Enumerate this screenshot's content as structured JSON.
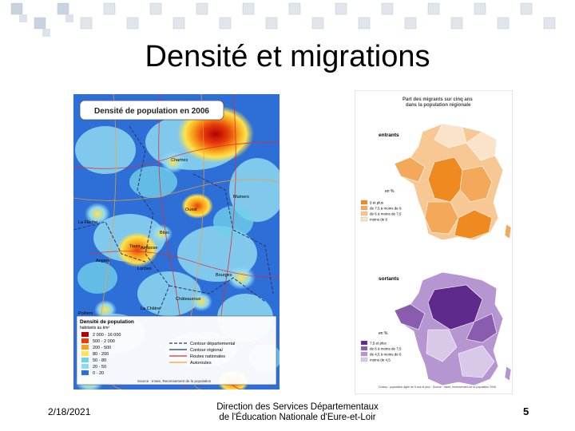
{
  "slide": {
    "title": "Densité et migrations",
    "date": "2/18/2021",
    "footer_line1": "Direction des Services Départementaux",
    "footer_line2": "de l'Éducation Nationale d'Eure-et-Loir",
    "page_number": "5"
  },
  "left_map": {
    "title": "Densité de population en 2006",
    "places": [
      "Chartres",
      "Mamers",
      "Ouest",
      "La Flèche",
      "Tours",
      "Amboise",
      "Blois",
      "Angers",
      "Loches",
      "Bourges",
      "Châteauroux",
      "La Châtre",
      "Poitiers"
    ],
    "legend_title": "Densité de population",
    "legend_subtitle": "habitants au km²",
    "legend_items": [
      {
        "range": "2 000 - 16 000",
        "color": "#b30000"
      },
      {
        "range": "500 - 2 000",
        "color": "#e8400c"
      },
      {
        "range": "200 - 500",
        "color": "#f7a21b"
      },
      {
        "range": "80 - 200",
        "color": "#ffe24d"
      },
      {
        "range": "50 - 80",
        "color": "#6fd0ea"
      },
      {
        "range": "20 - 50",
        "color": "#8fd8f0"
      },
      {
        "range": "0 - 20",
        "color": "#2d6fd6"
      }
    ],
    "line_legend": [
      "Contour départemental",
      "Contour régional",
      "Routes nationales",
      "Autoroutes"
    ],
    "source": "Source : Insee, Recensement de la population"
  },
  "right_map": {
    "title_line1": "Part des migrants sur cinq ans",
    "title_line2": "dans la population régionale",
    "entrants_label": "entrants",
    "sortants_label": "sortants",
    "unit": "en %",
    "entrants_legend": [
      "9 et plus",
      "de 7,5 à moins de 9",
      "de 6 à moins de 7,5",
      "moins de 6"
    ],
    "sortants_legend": [
      "7,5 et plus",
      "de 6 à moins de 7,5",
      "de 4,5 à moins de 6",
      "moins de 4,5"
    ],
    "entrants_colors": [
      "#ee8a1f",
      "#f4a85a",
      "#f8c894",
      "#fbe3c9"
    ],
    "sortants_colors": [
      "#5e2a8c",
      "#8a5cb0",
      "#b596d0",
      "#d9c9e8"
    ],
    "source": "Champ : population âgée de 5 ans et plus ; Source : Insee, recensement de la population 2006"
  }
}
